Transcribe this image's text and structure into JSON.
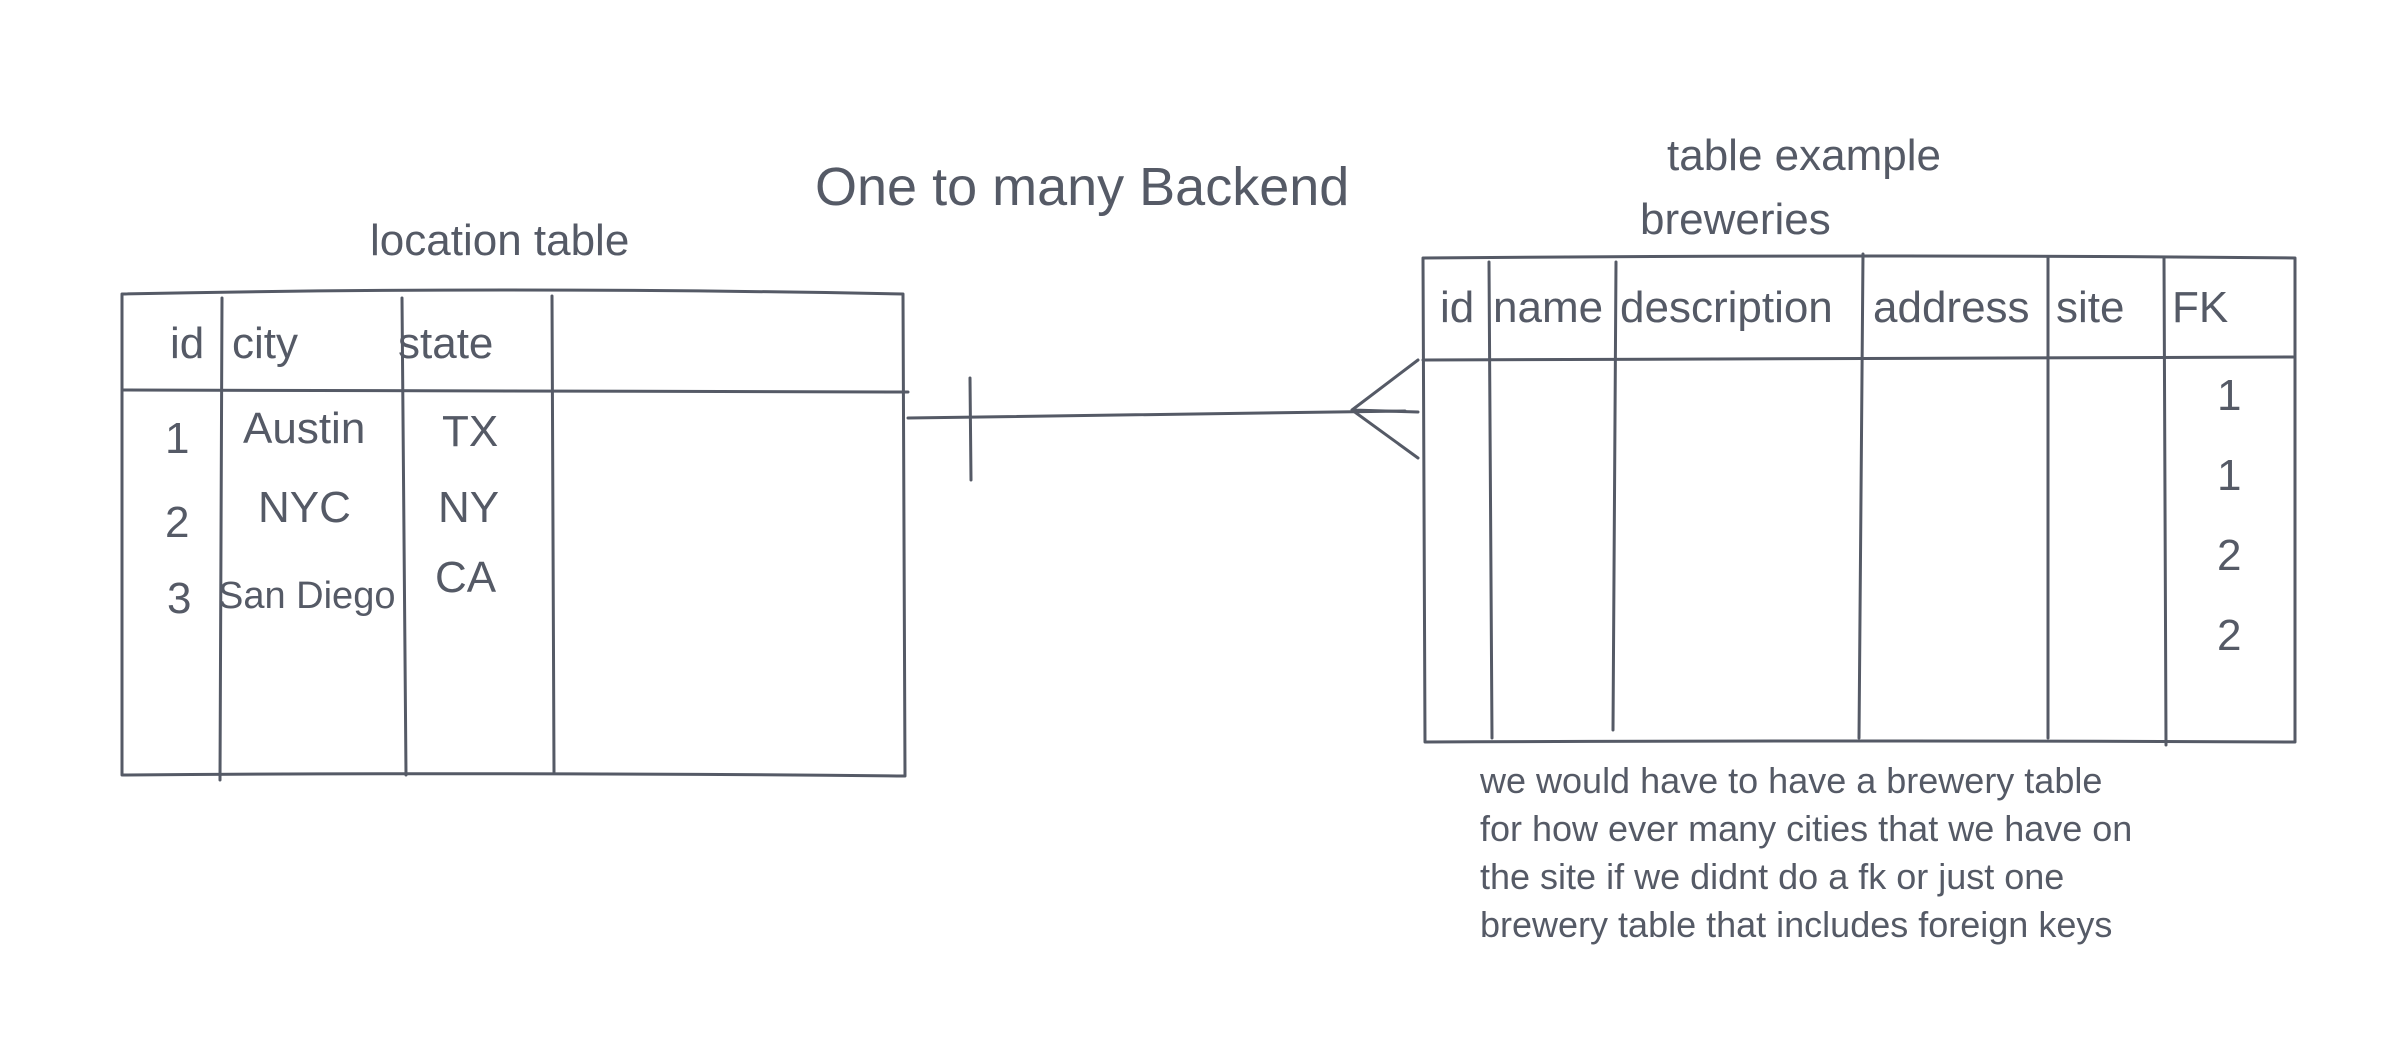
{
  "title": "One to many Backend",
  "location_table": {
    "label": "location table",
    "headers": [
      "id",
      "city",
      "state"
    ],
    "rows": [
      {
        "id": "1",
        "city": "Austin",
        "state": "TX"
      },
      {
        "id": "2",
        "city": "NYC",
        "state": "NY"
      },
      {
        "id": "3",
        "city": "San Diego",
        "state": "CA"
      }
    ]
  },
  "breweries_table": {
    "label_line1": "table example",
    "label_line2": "breweries",
    "headers": [
      "id",
      "name",
      "description",
      "address",
      "site",
      "FK"
    ],
    "fk_values": [
      "1",
      "1",
      "2",
      "2"
    ]
  },
  "note": {
    "lines": [
      "we would have to have a brewery table",
      "for how ever many cities that we have on",
      "the site if we didnt do a fk or just one",
      "brewery table that includes foreign keys"
    ]
  }
}
